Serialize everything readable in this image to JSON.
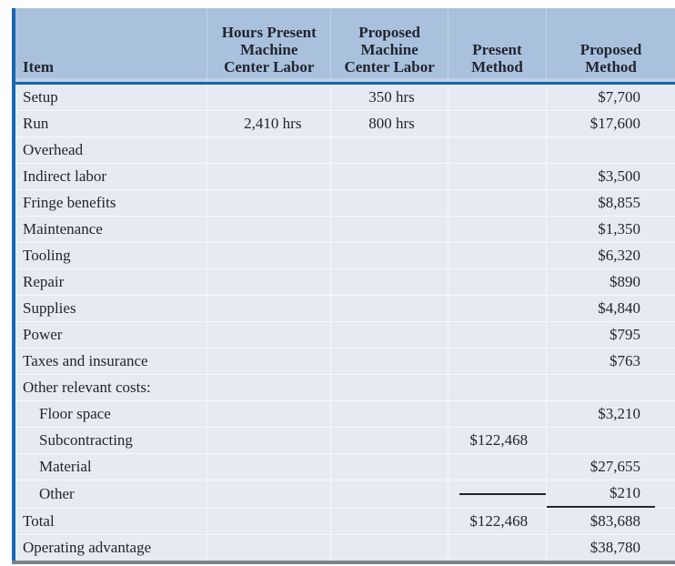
{
  "colors": {
    "header_bg": "#aac1de",
    "body_bg": "#e6ebf3",
    "accent_left_border": "#1569b3",
    "header_rule": "#1565ad",
    "bottom_border": "#7b828d",
    "text": "#21252e"
  },
  "table": {
    "header": {
      "item": "Item",
      "hours_present": "Hours Present\nMachine\nCenter Labor",
      "proposed_machine": "Proposed\nMachine\nCenter Labor",
      "present_method": "Present\nMethod",
      "proposed_method": "Proposed\nMethod"
    },
    "rows": [
      {
        "item": "Setup",
        "hours_present": "",
        "proposed_machine": "350 hrs",
        "present_method": "",
        "proposed_method": "$7,700",
        "indent": false
      },
      {
        "item": "Run",
        "hours_present": "2,410 hrs",
        "proposed_machine": "800 hrs",
        "present_method": "",
        "proposed_method": "$17,600",
        "indent": false
      },
      {
        "item": "Overhead",
        "hours_present": "",
        "proposed_machine": "",
        "present_method": "",
        "proposed_method": "",
        "indent": false
      },
      {
        "item": "Indirect labor",
        "hours_present": "",
        "proposed_machine": "",
        "present_method": "",
        "proposed_method": "$3,500",
        "indent": false
      },
      {
        "item": "Fringe benefits",
        "hours_present": "",
        "proposed_machine": "",
        "present_method": "",
        "proposed_method": "$8,855",
        "indent": false
      },
      {
        "item": "Maintenance",
        "hours_present": "",
        "proposed_machine": "",
        "present_method": "",
        "proposed_method": "$1,350",
        "indent": false
      },
      {
        "item": "Tooling",
        "hours_present": "",
        "proposed_machine": "",
        "present_method": "",
        "proposed_method": "$6,320",
        "indent": false
      },
      {
        "item": "Repair",
        "hours_present": "",
        "proposed_machine": "",
        "present_method": "",
        "proposed_method": "$890",
        "indent": false
      },
      {
        "item": "Supplies",
        "hours_present": "",
        "proposed_machine": "",
        "present_method": "",
        "proposed_method": "$4,840",
        "indent": false
      },
      {
        "item": "Power",
        "hours_present": "",
        "proposed_machine": "",
        "present_method": "",
        "proposed_method": "$795",
        "indent": false
      },
      {
        "item": "Taxes and insurance",
        "hours_present": "",
        "proposed_machine": "",
        "present_method": "",
        "proposed_method": "$763",
        "indent": false
      },
      {
        "item": "Other relevant costs:",
        "hours_present": "",
        "proposed_machine": "",
        "present_method": "",
        "proposed_method": "",
        "indent": false
      },
      {
        "item": "Floor space",
        "hours_present": "",
        "proposed_machine": "",
        "present_method": "",
        "proposed_method": "$3,210",
        "indent": true
      },
      {
        "item": "Subcontracting",
        "hours_present": "",
        "proposed_machine": "",
        "present_method": "$122,468",
        "proposed_method": "",
        "indent": true
      },
      {
        "item": "Material",
        "hours_present": "",
        "proposed_machine": "",
        "present_method": "",
        "proposed_method": "$27,655",
        "indent": true
      },
      {
        "item": "Other",
        "hours_present": "",
        "proposed_machine": "",
        "present_method": "",
        "proposed_method": "$210",
        "indent": true,
        "sum_rule_underline": true
      },
      {
        "item": "Total",
        "hours_present": "",
        "proposed_machine": "",
        "present_method": "$122,468",
        "proposed_method": "$83,688",
        "indent": false
      },
      {
        "item": "Operating advantage",
        "hours_present": "",
        "proposed_machine": "",
        "present_method": "",
        "proposed_method": "$38,780",
        "indent": false
      }
    ]
  }
}
